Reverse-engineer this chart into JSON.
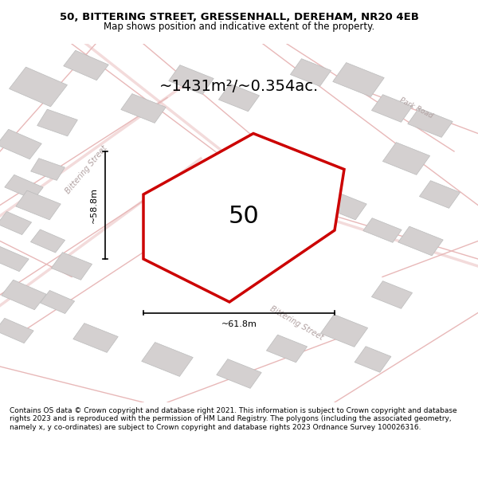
{
  "title_line1": "50, BITTERING STREET, GRESSENHALL, DEREHAM, NR20 4EB",
  "title_line2": "Map shows position and indicative extent of the property.",
  "area_text": "~1431m²/~0.354ac.",
  "plot_number": "50",
  "dim_height": "~58.8m",
  "dim_width": "~61.8m",
  "footer_text": "Contains OS data © Crown copyright and database right 2021. This information is subject to Crown copyright and database rights 2023 and is reproduced with the permission of HM Land Registry. The polygons (including the associated geometry, namely x, y co-ordinates) are subject to Crown copyright and database rights 2023 Ordnance Survey 100026316.",
  "bg_color": "#f5f0f0",
  "map_bg": "#f8f4f4",
  "road_color": "#e8b8b8",
  "building_color": "#d4d0d0",
  "plot_outline_color": "#cc0000",
  "street_label_bittering": "Bittering Street",
  "street_label_park": "Park Road",
  "title_bg": "#ffffff",
  "footer_bg": "#ffffff"
}
